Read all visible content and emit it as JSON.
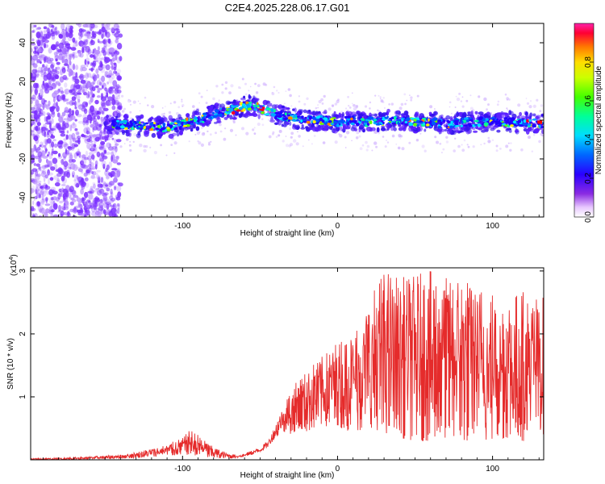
{
  "title": "C2E4.2025.228.06.17.G01",
  "chart_data": [
    {
      "type": "heatmap",
      "xlabel": "Height of straight line (km)",
      "ylabel": "Frequency (Hz)",
      "xlim": [
        -198,
        133
      ],
      "ylim": [
        -50,
        50
      ],
      "x_ticks": [
        -100,
        0,
        100
      ],
      "y_ticks": [
        -40,
        -20,
        0,
        20,
        40
      ],
      "colorbar": {
        "label": "Normalized spectral amplitude",
        "ticks": [
          "0.0",
          "0.2",
          "0.4",
          "0.6",
          "0.8"
        ],
        "tick_values": [
          0.0,
          0.2,
          0.4,
          0.6,
          0.8
        ],
        "range": [
          0.0,
          1.0
        ],
        "colormap": "rainbow"
      },
      "ridge": {
        "x": [
          -150,
          -140,
          -130,
          -120,
          -110,
          -100,
          -90,
          -80,
          -70,
          -60,
          -55,
          -50,
          -40,
          -30,
          -20,
          -10,
          0,
          10,
          20,
          30,
          40,
          50,
          60,
          70,
          80,
          90,
          100,
          110,
          120,
          130
        ],
        "freq": [
          -3,
          -2,
          -3,
          -3,
          -4,
          -2,
          0,
          3,
          5,
          7,
          8,
          6,
          3,
          1,
          0,
          0,
          -1,
          0,
          -1,
          0,
          0,
          -1,
          -1,
          -2,
          -1,
          -1,
          -1,
          -1,
          -1,
          -2
        ]
      },
      "colors": {
        "ridge_high": "#ff0000",
        "ridge_mid": "#00ff80",
        "ridge_low": "#0044ff",
        "noise": "#7b2fff"
      }
    },
    {
      "type": "line",
      "xlabel": "Height of straight line (km)",
      "ylabel": "SNR (10 * v/v)",
      "yscale_label": "(x10",
      "yscale_exp": "4",
      "yscale_close": ")",
      "xlim": [
        -198,
        133
      ],
      "ylim": [
        0,
        3.05
      ],
      "x_ticks": [
        -100,
        0,
        100
      ],
      "y_ticks": [
        1,
        2,
        3
      ],
      "series": [
        {
          "color": "#e52b2b",
          "envelope": {
            "x": [
              -198,
              -180,
              -160,
              -140,
              -130,
              -120,
              -110,
              -100,
              -95,
              -90,
              -85,
              -80,
              -75,
              -70,
              -65,
              -60,
              -55,
              -50,
              -45,
              -40,
              -35,
              -30,
              -25,
              -20,
              -15,
              -10,
              -5,
              0,
              5,
              10,
              15,
              20,
              25,
              30,
              35,
              40,
              50,
              60,
              70,
              80,
              90,
              100,
              110,
              120,
              130
            ],
            "low": [
              0.0,
              0.0,
              0.01,
              0.02,
              0.03,
              0.04,
              0.06,
              0.08,
              0.08,
              0.06,
              0.04,
              0.03,
              0.02,
              0.02,
              0.03,
              0.05,
              0.08,
              0.12,
              0.2,
              0.35,
              0.45,
              0.4,
              0.5,
              0.45,
              0.5,
              0.55,
              0.5,
              0.55,
              0.45,
              0.5,
              0.45,
              0.5,
              0.45,
              0.4,
              0.4,
              0.35,
              0.3,
              0.3,
              0.35,
              0.3,
              0.3,
              0.3,
              0.35,
              0.3,
              0.4
            ],
            "high": [
              0.02,
              0.03,
              0.05,
              0.08,
              0.12,
              0.18,
              0.25,
              0.35,
              0.48,
              0.4,
              0.3,
              0.2,
              0.15,
              0.1,
              0.08,
              0.1,
              0.15,
              0.2,
              0.3,
              0.55,
              0.9,
              1.1,
              1.3,
              1.4,
              1.55,
              1.65,
              1.75,
              1.9,
              2.0,
              2.1,
              2.3,
              2.5,
              2.8,
              3.0,
              3.0,
              2.9,
              2.95,
              3.0,
              2.9,
              2.95,
              2.8,
              2.7,
              2.6,
              2.7,
              2.6
            ]
          }
        }
      ]
    }
  ]
}
